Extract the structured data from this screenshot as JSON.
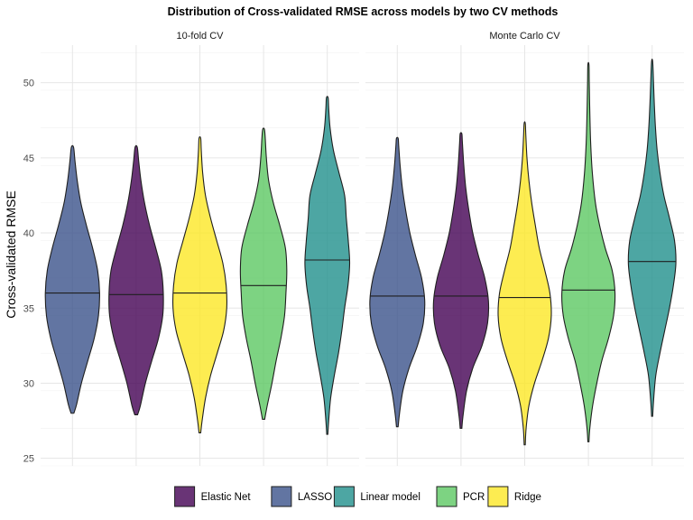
{
  "chart_data": {
    "type": "violin",
    "title": "Distribution of Cross-validated RMSE across models by two CV methods",
    "ylabel": "Cross-validated RMSE",
    "xlabel": "",
    "ylim": [
      24.5,
      52.5
    ],
    "yticks": [
      25,
      30,
      35,
      40,
      45,
      50
    ],
    "grid": true,
    "legend_position": "bottom",
    "categories": [
      "LASSO",
      "Elastic Net",
      "Ridge",
      "PCR",
      "Linear model"
    ],
    "colors": {
      "Elastic Net": "#440154",
      "LASSO": "#3b528b",
      "Linear model": "#21908c",
      "PCR": "#5dc863",
      "Ridge": "#fde725"
    },
    "legend": [
      "Elastic Net",
      "LASSO",
      "Linear model",
      "PCR",
      "Ridge"
    ],
    "panels": [
      {
        "name": "10-fold CV",
        "series": [
          {
            "model": "LASSO",
            "min": 28.0,
            "max": 45.7,
            "median": 36.0,
            "profile": [
              [
                28.0,
                0.05
              ],
              [
                28.6,
                0.15
              ],
              [
                30,
                0.32
              ],
              [
                31.5,
                0.55
              ],
              [
                33,
                0.78
              ],
              [
                34.5,
                0.93
              ],
              [
                36,
                0.97
              ],
              [
                37.5,
                0.9
              ],
              [
                39,
                0.72
              ],
              [
                40.5,
                0.5
              ],
              [
                42,
                0.3
              ],
              [
                43.5,
                0.17
              ],
              [
                44.8,
                0.09
              ],
              [
                45.7,
                0.04
              ]
            ]
          },
          {
            "model": "Elastic Net",
            "min": 27.9,
            "max": 45.7,
            "median": 35.9,
            "profile": [
              [
                27.9,
                0.05
              ],
              [
                28.5,
                0.15
              ],
              [
                30,
                0.33
              ],
              [
                31.5,
                0.56
              ],
              [
                33,
                0.8
              ],
              [
                34.5,
                0.95
              ],
              [
                36,
                0.97
              ],
              [
                37.5,
                0.9
              ],
              [
                39,
                0.7
              ],
              [
                40.5,
                0.48
              ],
              [
                42,
                0.3
              ],
              [
                43.5,
                0.17
              ],
              [
                44.8,
                0.09
              ],
              [
                45.7,
                0.04
              ]
            ]
          },
          {
            "model": "Ridge",
            "min": 26.7,
            "max": 46.3,
            "median": 36.0,
            "profile": [
              [
                26.7,
                0.03
              ],
              [
                27.5,
                0.08
              ],
              [
                29,
                0.2
              ],
              [
                30.5,
                0.38
              ],
              [
                32,
                0.62
              ],
              [
                33.5,
                0.85
              ],
              [
                35,
                0.96
              ],
              [
                36.5,
                0.94
              ],
              [
                38,
                0.82
              ],
              [
                39.5,
                0.6
              ],
              [
                41,
                0.38
              ],
              [
                42.5,
                0.2
              ],
              [
                44,
                0.1
              ],
              [
                45.5,
                0.05
              ],
              [
                46.3,
                0.03
              ]
            ]
          },
          {
            "model": "PCR",
            "min": 27.6,
            "max": 46.9,
            "median": 36.5,
            "profile": [
              [
                27.6,
                0.04
              ],
              [
                28.5,
                0.13
              ],
              [
                30,
                0.3
              ],
              [
                31.5,
                0.45
              ],
              [
                33,
                0.62
              ],
              [
                34.5,
                0.75
              ],
              [
                36,
                0.8
              ],
              [
                37.5,
                0.83
              ],
              [
                39,
                0.78
              ],
              [
                40.5,
                0.58
              ],
              [
                42,
                0.35
              ],
              [
                43.5,
                0.18
              ],
              [
                45,
                0.1
              ],
              [
                46.3,
                0.06
              ],
              [
                46.9,
                0.03
              ]
            ]
          },
          {
            "model": "Linear model",
            "min": 26.6,
            "max": 49.0,
            "median": 38.2,
            "profile": [
              [
                26.6,
                0.02
              ],
              [
                27.5,
                0.05
              ],
              [
                29,
                0.12
              ],
              [
                30.5,
                0.25
              ],
              [
                32,
                0.4
              ],
              [
                33.5,
                0.52
              ],
              [
                35,
                0.62
              ],
              [
                36.5,
                0.74
              ],
              [
                38,
                0.8
              ],
              [
                39.5,
                0.75
              ],
              [
                41,
                0.68
              ],
              [
                42.5,
                0.62
              ],
              [
                44,
                0.42
              ],
              [
                45.5,
                0.22
              ],
              [
                47,
                0.1
              ],
              [
                48.3,
                0.05
              ],
              [
                49.0,
                0.03
              ]
            ]
          }
        ]
      },
      {
        "name": "Monte Carlo CV",
        "series": [
          {
            "model": "LASSO",
            "min": 27.1,
            "max": 46.3,
            "median": 35.8,
            "profile": [
              [
                27.1,
                0.03
              ],
              [
                28,
                0.08
              ],
              [
                29.5,
                0.2
              ],
              [
                31,
                0.42
              ],
              [
                32.5,
                0.72
              ],
              [
                34,
                0.93
              ],
              [
                35.5,
                0.98
              ],
              [
                37,
                0.87
              ],
              [
                38.5,
                0.65
              ],
              [
                40,
                0.45
              ],
              [
                41.5,
                0.3
              ],
              [
                43,
                0.18
              ],
              [
                44.5,
                0.1
              ],
              [
                45.8,
                0.05
              ],
              [
                46.3,
                0.03
              ]
            ]
          },
          {
            "model": "Elastic Net",
            "min": 27.0,
            "max": 46.6,
            "median": 35.8,
            "profile": [
              [
                27.0,
                0.03
              ],
              [
                27.8,
                0.07
              ],
              [
                29.5,
                0.2
              ],
              [
                31,
                0.42
              ],
              [
                32.5,
                0.75
              ],
              [
                34,
                0.95
              ],
              [
                35.5,
                0.98
              ],
              [
                37,
                0.85
              ],
              [
                38.5,
                0.62
              ],
              [
                40,
                0.42
              ],
              [
                41.5,
                0.28
              ],
              [
                43,
                0.17
              ],
              [
                44.5,
                0.1
              ],
              [
                46,
                0.05
              ],
              [
                46.6,
                0.03
              ]
            ]
          },
          {
            "model": "Ridge",
            "min": 25.9,
            "max": 47.3,
            "median": 35.7,
            "profile": [
              [
                25.9,
                0.02
              ],
              [
                27,
                0.05
              ],
              [
                28.5,
                0.15
              ],
              [
                30,
                0.35
              ],
              [
                31.5,
                0.62
              ],
              [
                33,
                0.85
              ],
              [
                34.5,
                0.95
              ],
              [
                36,
                0.9
              ],
              [
                37.5,
                0.72
              ],
              [
                39,
                0.52
              ],
              [
                40.5,
                0.38
              ],
              [
                42,
                0.25
              ],
              [
                43.5,
                0.15
              ],
              [
                45,
                0.08
              ],
              [
                46.5,
                0.04
              ],
              [
                47.3,
                0.02
              ]
            ]
          },
          {
            "model": "PCR",
            "min": 26.1,
            "max": 51.2,
            "median": 36.2,
            "profile": [
              [
                26.1,
                0.02
              ],
              [
                27,
                0.05
              ],
              [
                28.5,
                0.15
              ],
              [
                30,
                0.3
              ],
              [
                31.5,
                0.48
              ],
              [
                33,
                0.72
              ],
              [
                34.5,
                0.9
              ],
              [
                36,
                0.95
              ],
              [
                37.5,
                0.85
              ],
              [
                39,
                0.6
              ],
              [
                40.5,
                0.4
              ],
              [
                42,
                0.25
              ],
              [
                44,
                0.14
              ],
              [
                46,
                0.08
              ],
              [
                48,
                0.05
              ],
              [
                50,
                0.03
              ],
              [
                51.2,
                0.02
              ]
            ]
          },
          {
            "model": "Linear model",
            "min": 27.8,
            "max": 51.4,
            "median": 38.1,
            "profile": [
              [
                27.8,
                0.02
              ],
              [
                28.8,
                0.05
              ],
              [
                30.5,
                0.13
              ],
              [
                32,
                0.28
              ],
              [
                33.5,
                0.45
              ],
              [
                35,
                0.62
              ],
              [
                36.5,
                0.76
              ],
              [
                38,
                0.85
              ],
              [
                39.5,
                0.8
              ],
              [
                41,
                0.62
              ],
              [
                42.5,
                0.42
              ],
              [
                44,
                0.28
              ],
              [
                45.5,
                0.18
              ],
              [
                47,
                0.12
              ],
              [
                48.5,
                0.08
              ],
              [
                50,
                0.05
              ],
              [
                51.4,
                0.02
              ]
            ]
          }
        ]
      }
    ]
  }
}
